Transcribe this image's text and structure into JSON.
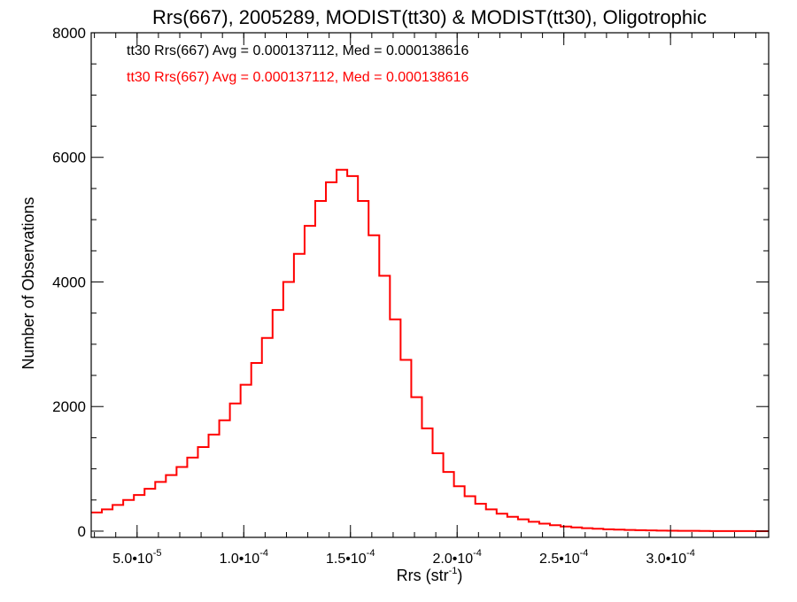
{
  "chart_data": {
    "type": "line",
    "title": "Rrs(667), 2005289, MODIST(tt30) & MODIST(tt30), Oligotrophic",
    "xlabel": "Rrs (str",
    "xlabel_sup": "-1",
    "xlabel_tail": ")",
    "ylabel": "Number of Observations",
    "xlim": [
      2.85e-05,
      0.000346
    ],
    "ylim": [
      -100,
      8000
    ],
    "x_ticks": [
      {
        "value": 5e-05,
        "label": "5.0•10",
        "exp": "-5"
      },
      {
        "value": 0.0001,
        "label": "1.0•10",
        "exp": "-4"
      },
      {
        "value": 0.00015,
        "label": "1.5•10",
        "exp": "-4"
      },
      {
        "value": 0.0002,
        "label": "2.0•10",
        "exp": "-4"
      },
      {
        "value": 0.00025,
        "label": "2.5•10",
        "exp": "-4"
      },
      {
        "value": 0.0003,
        "label": "3.0•10",
        "exp": "-4"
      }
    ],
    "y_ticks": [
      {
        "value": 0,
        "label": "0"
      },
      {
        "value": 2000,
        "label": "2000"
      },
      {
        "value": 4000,
        "label": "4000"
      },
      {
        "value": 6000,
        "label": "6000"
      },
      {
        "value": 8000,
        "label": "8000"
      }
    ],
    "annotations": [
      {
        "text": "tt30 Rrs(667) Avg = 0.000137112, Med = 0.000138616",
        "color": "#000000"
      },
      {
        "text": "tt30 Rrs(667) Avg = 0.000137112, Med = 0.000138616",
        "color": "#ff0000"
      }
    ],
    "series": [
      {
        "color": "#000000",
        "x": [],
        "values": []
      },
      {
        "color": "#ff0000",
        "x": [],
        "values": []
      }
    ],
    "histogram": {
      "x": [
        2.85e-05,
        3.35e-05,
        3.85e-05,
        4.35e-05,
        4.85e-05,
        5.35e-05,
        5.85e-05,
        6.35e-05,
        6.85e-05,
        7.35e-05,
        7.85e-05,
        8.35e-05,
        8.85e-05,
        9.35e-05,
        9.85e-05,
        0.0001035,
        0.0001085,
        0.0001135,
        0.0001185,
        0.0001235,
        0.0001285,
        0.0001335,
        0.0001385,
        0.0001435,
        0.0001485,
        0.0001535,
        0.0001585,
        0.0001635,
        0.0001685,
        0.0001735,
        0.0001785,
        0.0001835,
        0.0001885,
        0.0001935,
        0.0001985,
        0.0002035,
        0.0002085,
        0.0002135,
        0.0002185,
        0.0002235,
        0.0002285,
        0.0002335,
        0.0002385,
        0.0002435,
        0.0002485,
        0.0002535,
        0.0002585,
        0.0002635,
        0.0002685,
        0.0002735,
        0.0002785,
        0.0002835,
        0.0002885,
        0.0002935,
        0.0002985,
        0.0003035,
        0.0003085,
        0.0003135,
        0.0003185,
        0.0003235,
        0.0003285,
        0.0003335,
        0.0003385,
        0.000346
      ],
      "values": [
        300,
        350,
        420,
        500,
        580,
        680,
        790,
        900,
        1030,
        1180,
        1350,
        1550,
        1780,
        2050,
        2350,
        2700,
        3100,
        3550,
        4000,
        4450,
        4900,
        5300,
        5600,
        5800,
        5700,
        5300,
        4750,
        4100,
        3400,
        2750,
        2150,
        1650,
        1250,
        950,
        720,
        560,
        440,
        350,
        280,
        230,
        190,
        150,
        120,
        95,
        75,
        60,
        48,
        38,
        30,
        24,
        19,
        15,
        12,
        9,
        7,
        5,
        4,
        3,
        2,
        2,
        1,
        1,
        0,
        0
      ],
      "color": "#ff0000"
    }
  }
}
